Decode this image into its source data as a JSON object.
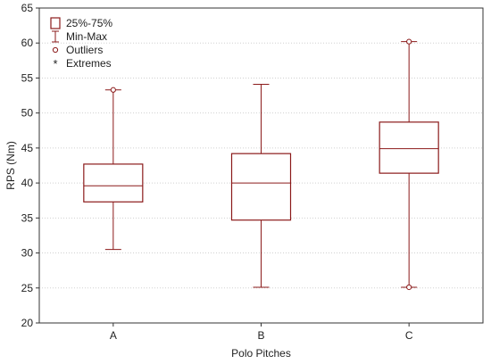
{
  "chart_data": {
    "type": "boxplot",
    "xlabel": "Polo Pitches",
    "ylabel": "RPS (Nm)",
    "ylim": [
      20,
      65
    ],
    "yticks": [
      20,
      25,
      30,
      35,
      40,
      45,
      50,
      55,
      60,
      65
    ],
    "grid": true,
    "legend_position": "top-left",
    "color": "#8b1a1a",
    "legend": [
      {
        "symbol": "box",
        "label": "25%-75%"
      },
      {
        "symbol": "whisker",
        "label": "Min-Max"
      },
      {
        "symbol": "circle",
        "label": "Outliers"
      },
      {
        "symbol": "asterisk",
        "label": "Extremes"
      }
    ],
    "categories": [
      "A",
      "B",
      "C"
    ],
    "boxes": [
      {
        "category": "A",
        "min": 30.5,
        "q1": 37.3,
        "median": 39.6,
        "q3": 42.7,
        "max": 53.3,
        "outliers": [
          53.3
        ],
        "extremes": []
      },
      {
        "category": "B",
        "min": 25.1,
        "q1": 34.7,
        "median": 40.0,
        "q3": 44.2,
        "max": 54.1,
        "outliers": [],
        "extremes": []
      },
      {
        "category": "C",
        "min": 25.1,
        "q1": 41.4,
        "median": 44.9,
        "q3": 48.7,
        "max": 60.2,
        "outliers": [
          60.2,
          25.1
        ],
        "extremes": []
      }
    ]
  }
}
